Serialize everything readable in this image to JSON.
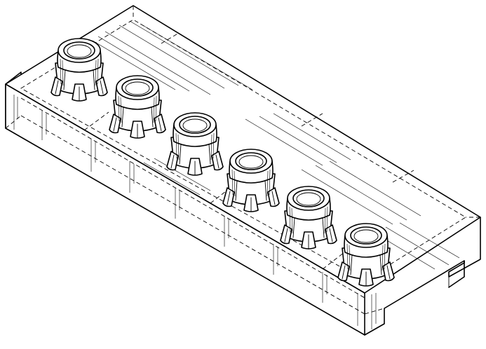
{
  "figure": {
    "subject": "tray",
    "colors": {
      "line": "#000000",
      "background": "#ffffff"
    }
  },
  "knobs": [
    {
      "name": "knob-1"
    },
    {
      "name": "knob-2"
    },
    {
      "name": "knob-3"
    },
    {
      "name": "knob-4"
    },
    {
      "name": "knob-5"
    },
    {
      "name": "knob-6"
    }
  ]
}
